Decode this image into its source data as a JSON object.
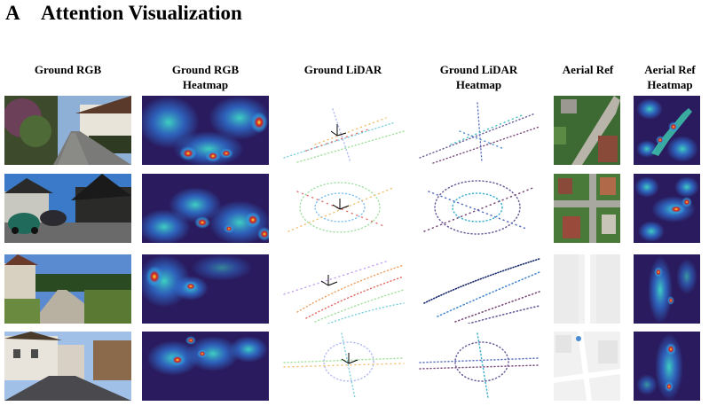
{
  "figure": {
    "panel_letter": "A",
    "title": "Attention Visualization"
  },
  "columns": [
    {
      "line1": "Ground RGB",
      "line2": ""
    },
    {
      "line1": "Ground RGB",
      "line2": "Heatmap"
    },
    {
      "line1": "Ground LiDAR",
      "line2": ""
    },
    {
      "line1": "Ground LiDAR",
      "line2": "Heatmap"
    },
    {
      "line1": "Aerial Ref",
      "line2": ""
    },
    {
      "line1": "Aerial Ref",
      "line2": "Heatmap"
    }
  ],
  "colors": {
    "heat_low": "#2a1a5e",
    "heat_mid": "#2f9be0",
    "heat_high": "#d41c1c",
    "heat_peak": "#f5e23a",
    "lidar_points": "#4a6fd0",
    "map_bg": "#f1f1f1",
    "aerial_green": "#3c6a32"
  }
}
